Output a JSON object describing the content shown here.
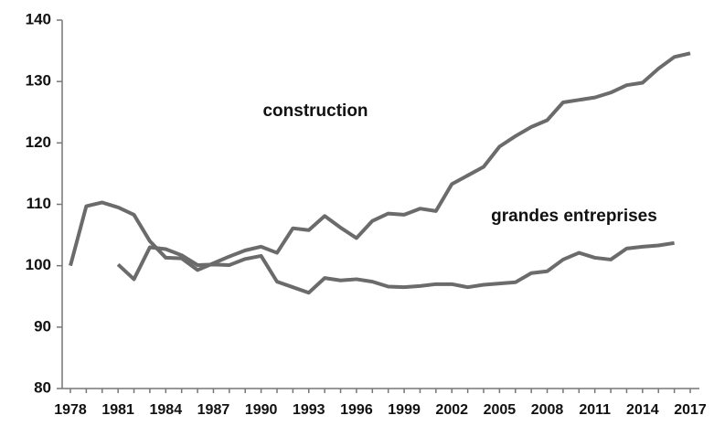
{
  "chart_data": {
    "type": "line",
    "x": [
      1978,
      1979,
      1980,
      1981,
      1982,
      1983,
      1984,
      1985,
      1986,
      1987,
      1988,
      1989,
      1990,
      1991,
      1992,
      1993,
      1994,
      1995,
      1996,
      1997,
      1998,
      1999,
      2000,
      2001,
      2002,
      2003,
      2004,
      2005,
      2006,
      2007,
      2008,
      2009,
      2010,
      2011,
      2012,
      2013,
      2014,
      2015,
      2016,
      2017
    ],
    "series": [
      {
        "name": "construction",
        "color": "#6b6b6b",
        "values": [
          100,
          109.7,
          110.3,
          109.5,
          108.3,
          104,
          101.3,
          101.2,
          99.3,
          100.4,
          101.5,
          102.5,
          103.1,
          102.1,
          106.1,
          105.8,
          108.1,
          106.2,
          104.5,
          107.3,
          108.5,
          108.3,
          109.3,
          108.9,
          113.3,
          114.7,
          116.1,
          119.4,
          121.1,
          122.6,
          123.7,
          126.6,
          127,
          127.4,
          128.2,
          129.4,
          129.8,
          132.1,
          134,
          134.6
        ]
      },
      {
        "name": "grandes entreprises",
        "color": "#6b6b6b",
        "values": [
          null,
          null,
          null,
          100.2,
          97.8,
          103,
          102.7,
          101.7,
          100.1,
          100.2,
          100.1,
          101.1,
          101.6,
          97.4,
          96.5,
          95.6,
          98,
          97.6,
          97.8,
          97.4,
          96.6,
          96.5,
          96.7,
          97,
          97,
          96.5,
          96.9,
          97.1,
          97.3,
          98.8,
          99.1,
          101,
          102.1,
          101.3,
          101,
          102.8,
          103.1,
          103.3,
          103.7,
          null
        ]
      }
    ],
    "xlim": [
      1978,
      2017
    ],
    "xticks": [
      1978,
      1981,
      1984,
      1987,
      1990,
      1993,
      1996,
      1999,
      2002,
      2005,
      2008,
      2011,
      2014,
      2017
    ],
    "ylim": [
      80,
      140
    ],
    "yticks": [
      80,
      90,
      100,
      110,
      120,
      130,
      140
    ],
    "grid": false
  }
}
